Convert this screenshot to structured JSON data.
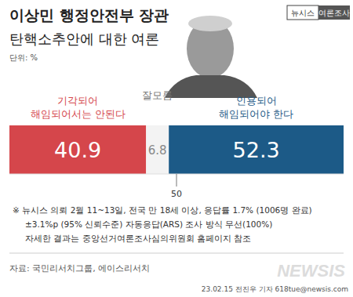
{
  "chart_data": {
    "type": "bar",
    "orientation": "horizontal",
    "stacked": true,
    "data_labels": true,
    "tick_labels": "x",
    "title": "이상민 행정안전부 장관",
    "subtitle": "탄핵소추안에 대한 여론",
    "unit": "단위: %",
    "badge": [
      "뉴시스",
      "여론조사"
    ],
    "categories": [
      null
    ],
    "series": [
      {
        "name": "기각되어 해임되어서는 안된다",
        "color": "#d5464b",
        "values": [
          40.9
        ]
      },
      {
        "name": "잘모름",
        "color": "#f3f3f3",
        "values": [
          6.8
        ]
      },
      {
        "name": "인용되어 해임되어야 한다",
        "color": "#1c5a87",
        "values": [
          52.3
        ]
      }
    ],
    "xlim": [
      0,
      100
    ],
    "xticks": [
      50
    ],
    "notes": [
      "※ 뉴시스 의뢰 2월 11~13일, 전국 만 18세 이상, 응답률 1.7% (1006명 완료)",
      "±3.1%p (95% 신뢰수준) 자동응답(ARS) 조사 방식 무선(100%)",
      "자세한 결과는 중앙선거여론조사심의위원회 홈페이지 참조"
    ],
    "source": "자료: 국민리서치그룹, 에이스리서치",
    "byline": "23.02.15 전진우 기자 618tue@newsis.com",
    "logo": "NEWSIS"
  }
}
